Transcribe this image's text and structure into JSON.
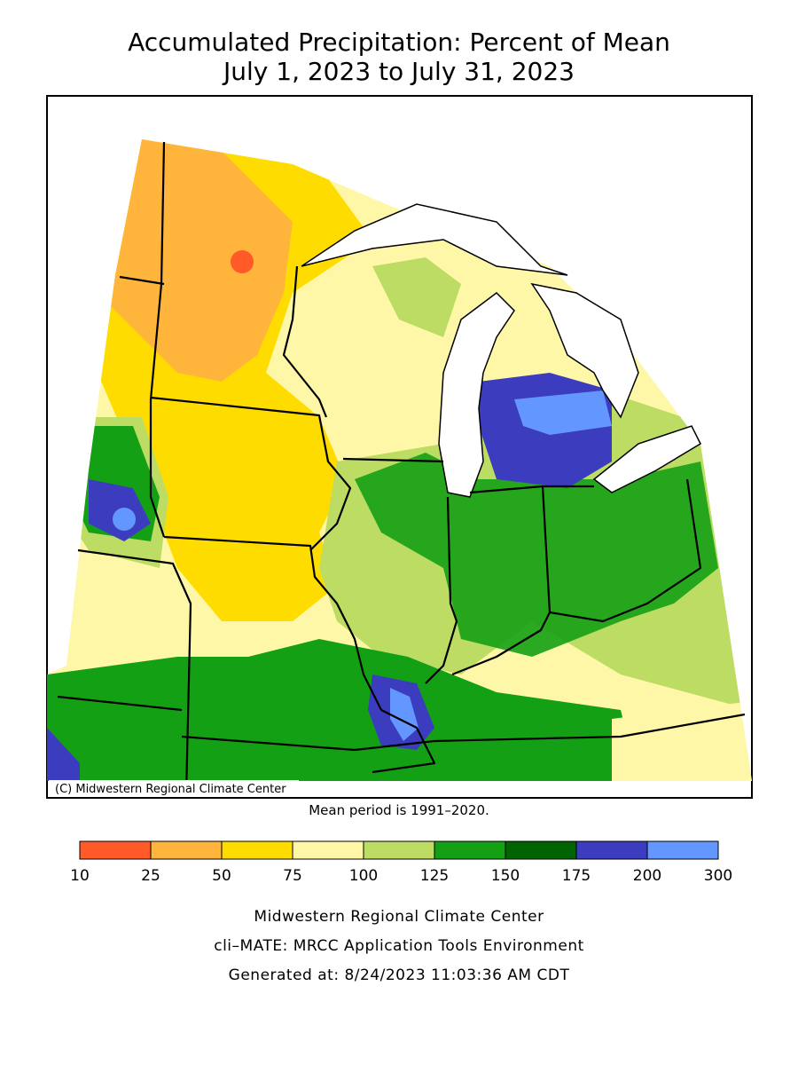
{
  "title": [
    "Accumulated Precipitation: Percent of Mean",
    "July 1, 2023 to July 31, 2023"
  ],
  "map": {
    "credit": "(C) Midwestern Regional Climate Center",
    "note": "Mean period is 1991–2020."
  },
  "legend": {
    "bins": [
      10,
      25,
      50,
      75,
      100,
      125,
      150,
      175,
      200,
      300
    ],
    "colors": [
      "#ff5a28",
      "#ffb43c",
      "#ffdc00",
      "#fff7a8",
      "#bcdc64",
      "#14a014",
      "#006400",
      "#3c3cbe",
      "#6496ff"
    ]
  },
  "footer": [
    "Midwestern Regional Climate Center",
    "cli–MATE: MRCC Application Tools Environment",
    "Generated at: 8/24/2023 11:03:36 AM CDT"
  ]
}
